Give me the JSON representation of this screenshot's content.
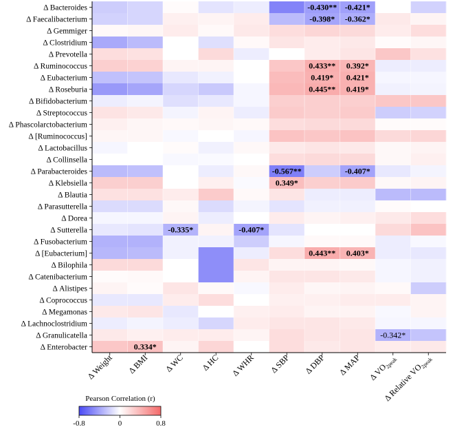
{
  "chart_data": {
    "type": "heatmap",
    "title": "",
    "rows": [
      "Δ Bacteroides",
      "Δ Faecalibacterium",
      "Δ Gemmiger",
      "Δ Clostridium",
      "Δ Prevotella",
      "Δ Ruminococcus",
      "Δ Eubacterium",
      "Δ Roseburia",
      "Δ Bifidobacterium",
      "Δ Streptococcus",
      "Δ Phascolarctobacterium",
      "Δ [Ruminococcus]",
      "Δ Lactobacillus",
      "Δ Collinsella",
      "Δ Parabacteroides",
      "Δ Klebsiella",
      "Δ Blautia",
      "Δ Parasutterella",
      "Δ Dorea",
      "Δ Sutterella",
      "Δ Fusobacterium",
      "Δ [Eubacterium]",
      "Δ Bilophila",
      "Δ Catenibacterium",
      "Δ Alistipes",
      "Δ Coprococcus",
      "Δ Megamonas",
      "Δ Lachnoclostridium",
      "Δ Granulicatella",
      "Δ Enterobacter"
    ],
    "columns": [
      {
        "prefix": "Δ ",
        "main": "Weight",
        "sub": ""
      },
      {
        "prefix": "Δ ",
        "main": "BMI",
        "sub": ""
      },
      {
        "prefix": "Δ ",
        "main": "WC",
        "sub": ""
      },
      {
        "prefix": "Δ ",
        "main": "HC",
        "sub": ""
      },
      {
        "prefix": "Δ ",
        "main": "WHR",
        "sub": ""
      },
      {
        "prefix": "Δ ",
        "main": "SBP",
        "sub": ""
      },
      {
        "prefix": "Δ ",
        "main": "DBP",
        "sub": ""
      },
      {
        "prefix": "Δ ",
        "main": "MAP",
        "sub": ""
      },
      {
        "prefix": "Δ ",
        "main": "VO",
        "sub": "2peak"
      },
      {
        "prefix": "Δ Relative ",
        "main": "VO",
        "sub": "2peak"
      }
    ],
    "values": [
      [
        -0.22,
        -0.18,
        0.02,
        -0.12,
        -0.08,
        -0.55,
        -0.43,
        -0.42,
        0.0,
        -0.2
      ],
      [
        -0.2,
        -0.18,
        0.08,
        0.06,
        0.1,
        -0.3,
        -0.4,
        -0.36,
        0.12,
        0.06
      ],
      [
        0.03,
        0.05,
        0.1,
        0.03,
        0.12,
        0.18,
        0.22,
        0.2,
        0.1,
        0.18
      ],
      [
        -0.38,
        -0.3,
        0.0,
        -0.14,
        0.03,
        0.14,
        0.1,
        0.12,
        0.02,
        0.05
      ],
      [
        0.18,
        0.16,
        0.0,
        0.2,
        -0.08,
        0.0,
        0.1,
        0.14,
        0.3,
        0.16
      ],
      [
        0.26,
        0.24,
        0.06,
        0.06,
        0.0,
        0.3,
        0.433,
        0.392,
        -0.08,
        -0.08
      ],
      [
        -0.28,
        -0.26,
        -0.1,
        -0.06,
        0.0,
        0.36,
        0.419,
        0.421,
        -0.04,
        -0.04
      ],
      [
        -0.45,
        -0.4,
        -0.18,
        -0.24,
        -0.04,
        0.38,
        0.445,
        0.419,
        -0.06,
        -0.05
      ],
      [
        -0.08,
        -0.05,
        -0.14,
        -0.1,
        -0.04,
        0.26,
        0.26,
        0.26,
        0.3,
        0.3
      ],
      [
        0.15,
        0.12,
        -0.05,
        0.06,
        -0.08,
        0.28,
        0.26,
        0.28,
        -0.22,
        -0.2
      ],
      [
        0.08,
        0.05,
        0.03,
        0.05,
        0.03,
        0.18,
        0.2,
        0.2,
        0.02,
        0.02
      ],
      [
        0.05,
        0.05,
        -0.03,
        0.0,
        -0.04,
        0.32,
        0.3,
        0.32,
        0.2,
        0.22
      ],
      [
        -0.04,
        0.0,
        0.02,
        -0.06,
        0.04,
        0.12,
        0.14,
        0.12,
        0.04,
        0.06
      ],
      [
        0.0,
        0.0,
        -0.03,
        -0.02,
        0.0,
        0.18,
        0.2,
        0.2,
        0.04,
        0.08
      ],
      [
        -0.3,
        -0.28,
        0.0,
        -0.08,
        0.04,
        -0.567,
        -0.22,
        -0.407,
        -0.1,
        -0.05
      ],
      [
        0.26,
        0.26,
        0.0,
        0.08,
        -0.02,
        0.349,
        0.26,
        0.28,
        0.04,
        0.06
      ],
      [
        0.16,
        0.16,
        0.1,
        0.28,
        0.03,
        0.14,
        -0.08,
        -0.08,
        -0.3,
        -0.3
      ],
      [
        -0.16,
        -0.16,
        0.04,
        -0.16,
        -0.05,
        -0.12,
        -0.06,
        -0.06,
        0.02,
        0.0
      ],
      [
        -0.04,
        -0.04,
        0.06,
        -0.08,
        0.0,
        0.1,
        0.06,
        0.08,
        0.12,
        0.18
      ],
      [
        -0.1,
        -0.12,
        -0.335,
        0.06,
        -0.407,
        -0.12,
        0.0,
        0.0,
        0.2,
        0.32
      ],
      [
        -0.34,
        -0.34,
        -0.06,
        -0.06,
        -0.22,
        -0.04,
        0.03,
        0.03,
        -0.08,
        -0.03
      ],
      [
        -0.32,
        -0.3,
        -0.06,
        -0.5,
        -0.08,
        0.18,
        0.443,
        0.403,
        -0.08,
        -0.1
      ],
      [
        0.2,
        0.2,
        0.0,
        -0.5,
        0.14,
        0.06,
        0.06,
        0.04,
        -0.04,
        -0.06
      ],
      [
        0.02,
        0.03,
        0.0,
        -0.5,
        0.06,
        0.14,
        0.14,
        0.12,
        -0.04,
        -0.06
      ],
      [
        0.06,
        0.02,
        0.14,
        0.03,
        -0.03,
        0.1,
        0.05,
        0.06,
        0.03,
        -0.22
      ],
      [
        -0.1,
        -0.1,
        0.1,
        0.18,
        0.0,
        0.08,
        0.08,
        0.1,
        0.1,
        0.06
      ],
      [
        0.12,
        0.14,
        -0.1,
        0.0,
        0.08,
        0.1,
        0.06,
        0.06,
        -0.03,
        0.06
      ],
      [
        -0.08,
        -0.05,
        -0.08,
        -0.18,
        0.1,
        0.14,
        0.14,
        0.12,
        -0.04,
        -0.04
      ],
      [
        0.12,
        0.08,
        0.1,
        0.1,
        0.06,
        0.18,
        0.14,
        0.14,
        -0.342,
        -0.26
      ],
      [
        0.3,
        0.334,
        0.06,
        0.22,
        0.0,
        0.18,
        0.12,
        0.14,
        0.1,
        0.12
      ]
    ],
    "annotations": [
      {
        "row": 0,
        "col": 6,
        "text": "-0.430**",
        "bold": true
      },
      {
        "row": 0,
        "col": 7,
        "text": "-0.421*",
        "bold": true
      },
      {
        "row": 1,
        "col": 6,
        "text": "-0.398*",
        "bold": true
      },
      {
        "row": 1,
        "col": 7,
        "text": "-0.362*",
        "bold": true
      },
      {
        "row": 5,
        "col": 6,
        "text": "0.433**",
        "bold": true
      },
      {
        "row": 5,
        "col": 7,
        "text": "0.392*",
        "bold": true
      },
      {
        "row": 6,
        "col": 6,
        "text": "0.419*",
        "bold": true
      },
      {
        "row": 6,
        "col": 7,
        "text": "0.421*",
        "bold": true
      },
      {
        "row": 7,
        "col": 6,
        "text": "0.445**",
        "bold": true
      },
      {
        "row": 7,
        "col": 7,
        "text": "0.419*",
        "bold": true
      },
      {
        "row": 14,
        "col": 5,
        "text": "-0.567**",
        "bold": true
      },
      {
        "row": 14,
        "col": 7,
        "text": "-0.407*",
        "bold": true
      },
      {
        "row": 15,
        "col": 5,
        "text": "0.349*",
        "bold": true
      },
      {
        "row": 19,
        "col": 2,
        "text": "-0.335*",
        "bold": true
      },
      {
        "row": 19,
        "col": 4,
        "text": "-0.407*",
        "bold": true
      },
      {
        "row": 21,
        "col": 6,
        "text": "0.443**",
        "bold": true
      },
      {
        "row": 21,
        "col": 7,
        "text": "0.403*",
        "bold": true
      },
      {
        "row": 28,
        "col": 8,
        "text": "-0.342*",
        "bold": false
      },
      {
        "row": 29,
        "col": 1,
        "text": "0.334*",
        "bold": true
      }
    ],
    "colorbar": {
      "title": "Pearson Correlation (r)",
      "min": -0.8,
      "max": 0.8,
      "ticks": [
        "-0.8",
        "0",
        "0.8"
      ],
      "colors": {
        "low": "#4a4af5",
        "mid": "#ffffff",
        "high": "#f46a6a"
      }
    }
  }
}
